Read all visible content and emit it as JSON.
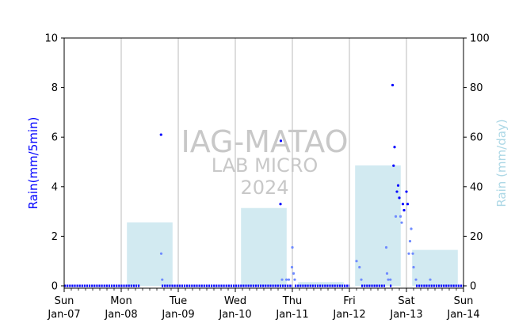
{
  "chart_data": {
    "type": "scatter",
    "colors": {
      "rain_5min": "#0000ff",
      "rain_5min_light": "#6f8bff",
      "daily_bars": "#add8e6",
      "left_axis_label": "#0000ff",
      "right_axis_label": "#add8e6",
      "gridlines": "#bbbbbb",
      "watermark": "#c8c8c8"
    },
    "xlim": [
      "Jan-07",
      "Jan-14"
    ],
    "x_ticks": [
      {
        "day": "Sun",
        "date": "Jan-07"
      },
      {
        "day": "Mon",
        "date": "Jan-08"
      },
      {
        "day": "Tue",
        "date": "Jan-09"
      },
      {
        "day": "Wed",
        "date": "Jan-10"
      },
      {
        "day": "Thu",
        "date": "Jan-11"
      },
      {
        "day": "Fri",
        "date": "Jan-12"
      },
      {
        "day": "Sat",
        "date": "Jan-13"
      },
      {
        "day": "Sun",
        "date": "Jan-14"
      }
    ],
    "left_axis": {
      "label": "Rain(mm/5min)",
      "ylim": [
        0,
        10
      ],
      "ticks": [
        "0",
        "2",
        "4",
        "6",
        "8",
        "10"
      ]
    },
    "right_axis": {
      "label": "Rain (mm/day)",
      "ylim": [
        0,
        100
      ],
      "ticks": [
        "0",
        "20",
        "40",
        "60",
        "80",
        "100"
      ]
    },
    "grid": "vertical at day boundaries",
    "watermark": [
      "IAG-MATAO",
      "LAB MICRO",
      "2024"
    ],
    "daily_totals": [
      {
        "date": "Jan-07",
        "value": 0
      },
      {
        "date": "Jan-08",
        "value": 25.6
      },
      {
        "date": "Jan-09",
        "value": 0
      },
      {
        "date": "Jan-10",
        "value": 31.4
      },
      {
        "date": "Jan-11",
        "value": 1.5
      },
      {
        "date": "Jan-12",
        "value": 48.6
      },
      {
        "date": "Jan-13",
        "value": 14.5
      }
    ],
    "points": [
      {
        "t": "Jan-08 16:45",
        "v": 6.1
      },
      {
        "t": "Jan-08 16:50",
        "v": 1.3
      },
      {
        "t": "Jan-08 17:15",
        "v": 0.25
      },
      {
        "t": "Jan-10 19:00",
        "v": 3.3
      },
      {
        "t": "Jan-10 19:10",
        "v": 5.85
      },
      {
        "t": "Jan-10 19:40",
        "v": 0.25
      },
      {
        "t": "Jan-10 21:30",
        "v": 0.25
      },
      {
        "t": "Jan-10 22:30",
        "v": 0.25
      },
      {
        "t": "Jan-11 00:00",
        "v": 1.55
      },
      {
        "t": "Jan-10 23:50",
        "v": 0.75
      },
      {
        "t": "Jan-11 00:30",
        "v": 0.5
      },
      {
        "t": "Jan-11 01:00",
        "v": 0.25
      },
      {
        "t": "Jan-12 03:00",
        "v": 1.0
      },
      {
        "t": "Jan-12 04:15",
        "v": 0.75
      },
      {
        "t": "Jan-12 05:00",
        "v": 0.25
      },
      {
        "t": "Jan-12 15:30",
        "v": 1.55
      },
      {
        "t": "Jan-12 15:50",
        "v": 0.5
      },
      {
        "t": "Jan-12 16:20",
        "v": 0.25
      },
      {
        "t": "Jan-12 17:15",
        "v": 0.25
      },
      {
        "t": "Jan-12 18:10",
        "v": 8.1
      },
      {
        "t": "Jan-12 18:35",
        "v": 4.85
      },
      {
        "t": "Jan-12 19:00",
        "v": 5.6
      },
      {
        "t": "Jan-12 19:30",
        "v": 2.8
      },
      {
        "t": "Jan-12 20:00",
        "v": 3.8
      },
      {
        "t": "Jan-12 20:30",
        "v": 4.05
      },
      {
        "t": "Jan-12 21:00",
        "v": 3.55
      },
      {
        "t": "Jan-12 21:30",
        "v": 2.8
      },
      {
        "t": "Jan-12 22:00",
        "v": 2.55
      },
      {
        "t": "Jan-12 22:30",
        "v": 3.3
      },
      {
        "t": "Jan-12 23:00",
        "v": 3.05
      },
      {
        "t": "Jan-13 00:00",
        "v": 3.8
      },
      {
        "t": "Jan-13 00:30",
        "v": 3.3
      },
      {
        "t": "Jan-13 01:00",
        "v": 1.3
      },
      {
        "t": "Jan-13 01:30",
        "v": 1.8
      },
      {
        "t": "Jan-13 02:00",
        "v": 2.3
      },
      {
        "t": "Jan-13 02:40",
        "v": 1.3
      },
      {
        "t": "Jan-13 03:00",
        "v": 0.75
      },
      {
        "t": "Jan-13 04:00",
        "v": 0.25
      },
      {
        "t": "Jan-13 10:00",
        "v": 0.25
      }
    ]
  }
}
